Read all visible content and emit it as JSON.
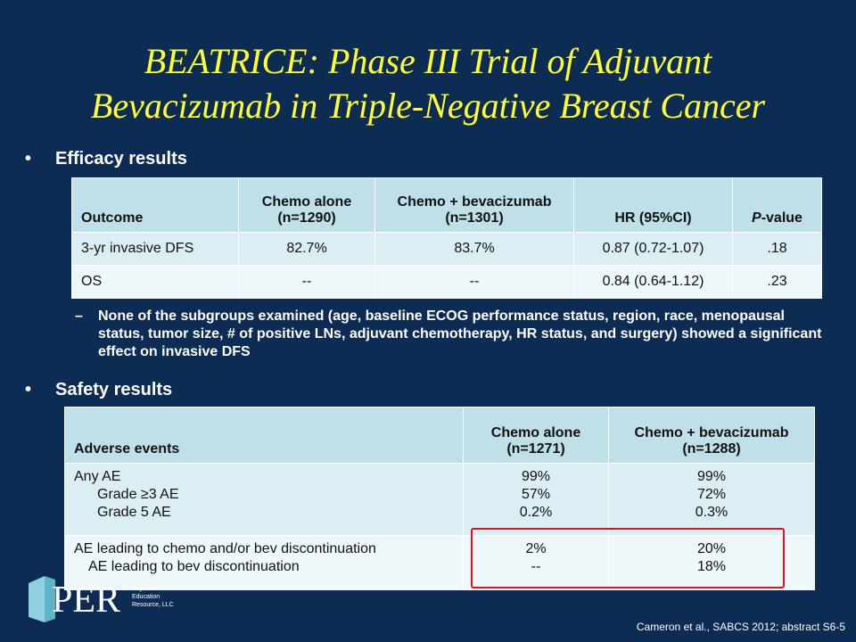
{
  "slide": {
    "title_line1": "BEATRICE: Phase III Trial of Adjuvant",
    "title_line2": "Bevacizumab in Triple-Negative Breast Cancer"
  },
  "efficacy": {
    "bullet": "Efficacy results",
    "headers": {
      "outcome": "Outcome",
      "chemo_line1": "Chemo alone",
      "chemo_line2": "(n=1290)",
      "bev_line1": "Chemo + bevacizumab",
      "bev_line2": "(n=1301)",
      "hr": "HR (95%CI)",
      "p_italic": "P",
      "p_rest": "-value"
    },
    "rows": [
      {
        "outcome": "3-yr invasive DFS",
        "chemo": "82.7%",
        "bev": "83.7%",
        "hr": "0.87 (0.72-1.07)",
        "p": ".18"
      },
      {
        "outcome": "OS",
        "chemo": "--",
        "bev": "--",
        "hr": "0.84 (0.64-1.12)",
        "p": ".23"
      }
    ],
    "subpoint_dash": "–",
    "subpoint": "None of the subgroups examined (age, baseline ECOG performance status, region, race, menopausal status, tumor size, # of positive LNs, adjuvant chemotherapy, HR status, and surgery) showed a significant effect on invasive DFS"
  },
  "safety": {
    "bullet": "Safety results",
    "headers": {
      "events": "Adverse events",
      "chemo_line1": "Chemo alone",
      "chemo_line2": "(n=1271)",
      "bev_line1": "Chemo + bevacizumab",
      "bev_line2": "(n=1288)"
    },
    "row1": {
      "events": [
        "Any AE",
        "Grade ≥3 AE",
        "Grade 5 AE"
      ],
      "chemo": [
        "99%",
        "57%",
        "0.2%"
      ],
      "bev": [
        "99%",
        "72%",
        "0.3%"
      ]
    },
    "row2": {
      "events": [
        "AE leading to chemo and/or bev discontinuation",
        "AE leading to bev discontinuation"
      ],
      "chemo": [
        "2%",
        "--"
      ],
      "bev": [
        "20%",
        "18%"
      ]
    }
  },
  "logo": {
    "text": "PER",
    "tagline1": "Physicians'",
    "tagline2": "Education",
    "tagline3": "Resource, LLC"
  },
  "citation": "Cameron et al., SABCS 2012; abstract S6-5",
  "colors": {
    "background": "#0d2c54",
    "title": "#ffff33",
    "header_fill": "#bfe0e8",
    "highlight": "#e01020"
  }
}
